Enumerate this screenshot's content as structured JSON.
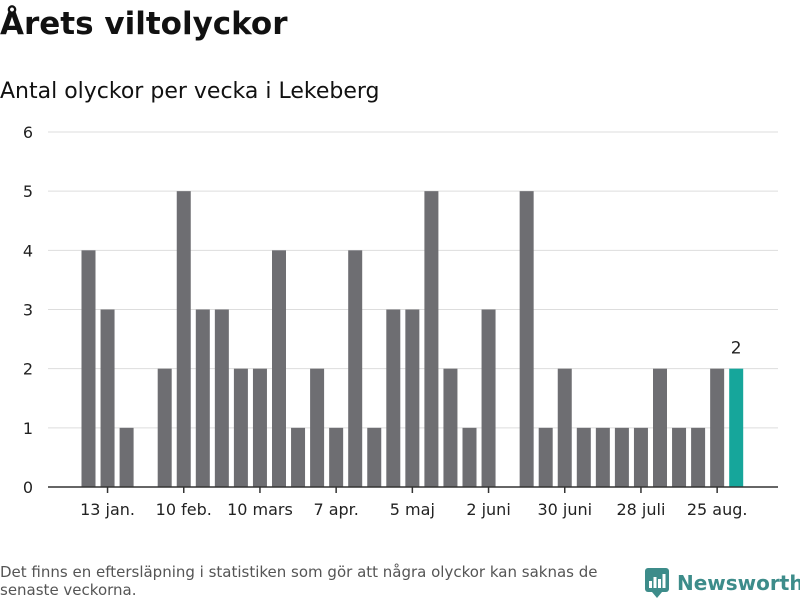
{
  "header": {
    "title": "Årets viltolyckor",
    "subtitle": "Antal olyckor per vecka i Lekeberg"
  },
  "footer": {
    "note": "Det finns en eftersläpning i statistiken som gör att några olyckor kan saknas de senaste veckorna.",
    "brand": "Newsworthy",
    "brand_color": "#3d8c8a"
  },
  "chart_data": {
    "type": "bar",
    "title": "Antal olyckor per vecka i Lekeberg",
    "xlabel": "",
    "ylabel": "",
    "ylim": [
      0,
      6
    ],
    "yticks": [
      0,
      1,
      2,
      3,
      4,
      5,
      6
    ],
    "grid": true,
    "legend": "none",
    "bar_color": "#6e6e72",
    "highlight_color": "#16a69b",
    "weeks": [
      2,
      3,
      4,
      6,
      7,
      8,
      9,
      10,
      11,
      12,
      13,
      14,
      15,
      16,
      17,
      18,
      19,
      20,
      21,
      22,
      23,
      25,
      26,
      27,
      28,
      29,
      30,
      31,
      32,
      33,
      34,
      35,
      36
    ],
    "values": [
      4,
      3,
      1,
      2,
      5,
      3,
      3,
      2,
      2,
      4,
      1,
      2,
      1,
      4,
      1,
      3,
      3,
      5,
      2,
      1,
      3,
      5,
      1,
      2,
      1,
      1,
      1,
      1,
      2,
      1,
      1,
      2,
      2
    ],
    "highlight_week": 36,
    "data_labels": [
      {
        "week": 36,
        "text": "2"
      }
    ],
    "xticks": [
      {
        "week": 3,
        "label": "13 jan."
      },
      {
        "week": 7,
        "label": "10 feb."
      },
      {
        "week": 11,
        "label": "10 mars"
      },
      {
        "week": 15,
        "label": "7 apr."
      },
      {
        "week": 19,
        "label": "5 maj"
      },
      {
        "week": 23,
        "label": "2 juni"
      },
      {
        "week": 27,
        "label": "30 juni"
      },
      {
        "week": 31,
        "label": "28 juli"
      },
      {
        "week": 35,
        "label": "25 aug."
      }
    ]
  }
}
